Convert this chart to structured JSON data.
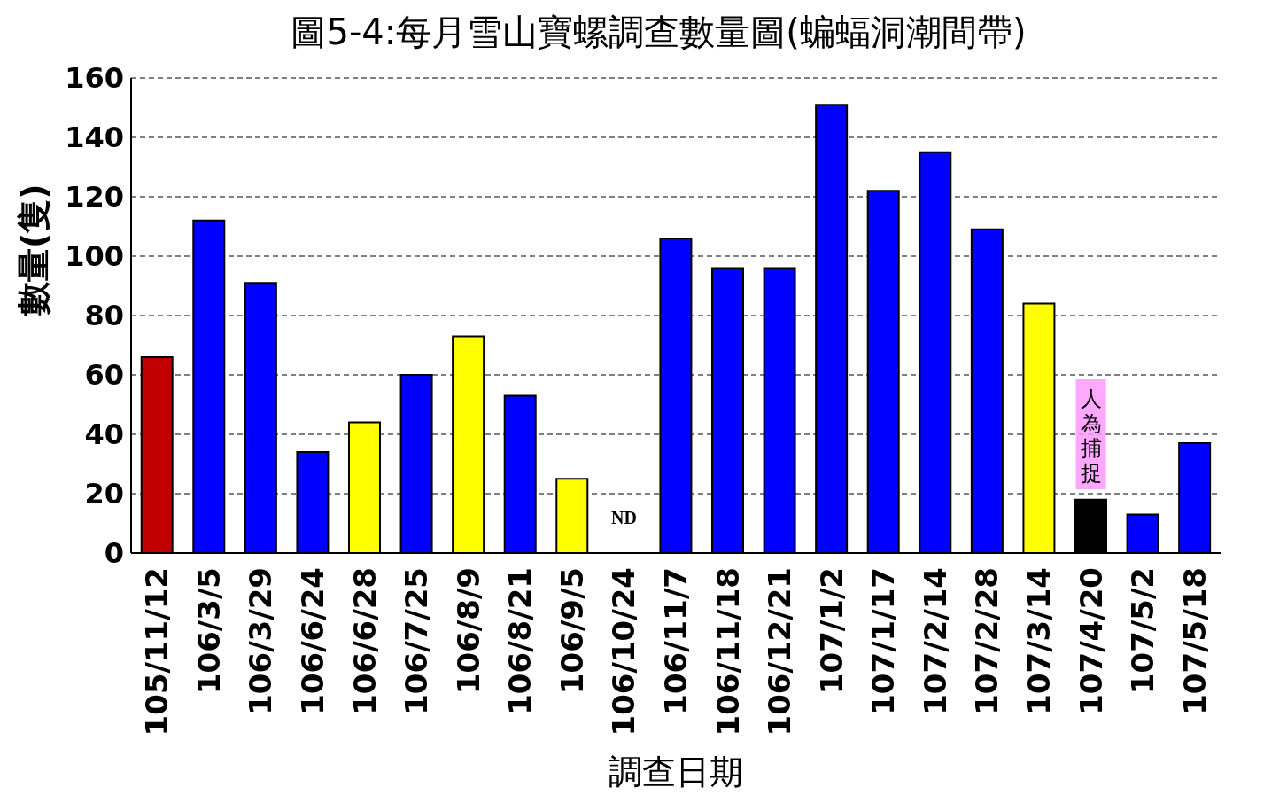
{
  "chart_data": {
    "type": "bar",
    "title": "圖5-4:每月雪山寶螺調查數量圖(蝙蝠洞潮間帶)",
    "xlabel": "調查日期",
    "ylabel": "數量(隻)",
    "categories": [
      "105/11/12",
      "106/3/5",
      "106/3/29",
      "106/6/24",
      "106/6/28",
      "106/7/25",
      "106/8/9",
      "106/8/21",
      "106/9/5",
      "106/10/24",
      "106/11/7",
      "106/11/18",
      "106/12/21",
      "107/1/2",
      "107/1/17",
      "107/2/14",
      "107/2/28",
      "107/3/14",
      "107/4/20",
      "107/5/2",
      "107/5/18"
    ],
    "values": [
      66,
      112,
      91,
      34,
      44,
      60,
      73,
      53,
      25,
      null,
      106,
      96,
      96,
      151,
      122,
      135,
      109,
      84,
      18,
      13,
      37
    ],
    "colors": [
      "#c00000",
      "#0000ff",
      "#0000ff",
      "#0000ff",
      "#ffff00",
      "#0000ff",
      "#ffff00",
      "#0000ff",
      "#ffff00",
      "#0000ff",
      "#0000ff",
      "#0000ff",
      "#0000ff",
      "#0000ff",
      "#0000ff",
      "#0000ff",
      "#0000ff",
      "#ffff00",
      "#000000",
      "#0000ff",
      "#0000ff"
    ],
    "ylim": [
      0,
      160
    ],
    "yticks": [
      0,
      20,
      40,
      60,
      80,
      100,
      120,
      140,
      160
    ],
    "grid": "y",
    "annotations": [
      "ND",
      "人為捕捉"
    ]
  }
}
